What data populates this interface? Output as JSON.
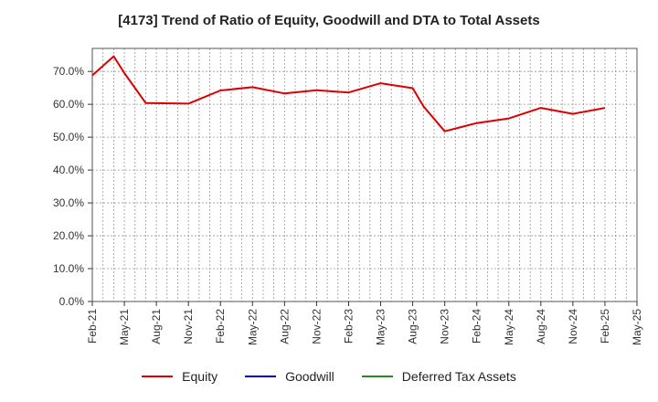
{
  "chart_data": {
    "type": "line",
    "title": "[4173]  Trend of Ratio of Equity, Goodwill and DTA to Total Assets",
    "xlabel": "",
    "ylabel": "",
    "x": [
      "2021-02",
      "2021-03",
      "2021-04",
      "2021-05",
      "2021-06",
      "2021-07",
      "2021-08",
      "2021-09",
      "2021-10",
      "2021-11",
      "2021-12",
      "2022-01",
      "2022-02",
      "2022-03",
      "2022-04",
      "2022-05",
      "2022-06",
      "2022-07",
      "2022-08",
      "2022-09",
      "2022-10",
      "2022-11",
      "2022-12",
      "2023-01",
      "2023-02",
      "2023-03",
      "2023-04",
      "2023-05",
      "2023-06",
      "2023-07",
      "2023-08",
      "2023-09",
      "2023-10",
      "2023-11",
      "2023-12",
      "2024-01",
      "2024-02",
      "2024-03",
      "2024-04",
      "2024-05",
      "2024-06",
      "2024-07",
      "2024-08",
      "2024-09",
      "2024-10",
      "2024-11",
      "2024-12",
      "2025-01",
      "2025-02",
      "2025-03",
      "2025-04",
      "2025-05"
    ],
    "x_ticks": [
      "Feb-21",
      "May-21",
      "Aug-21",
      "Nov-21",
      "Feb-22",
      "May-22",
      "Aug-22",
      "Nov-22",
      "Feb-23",
      "May-23",
      "Aug-23",
      "Nov-23",
      "Feb-24",
      "May-24",
      "Aug-24",
      "Nov-24",
      "Feb-25",
      "May-25"
    ],
    "y_ticks": [
      "0.0%",
      "10.0%",
      "20.0%",
      "30.0%",
      "40.0%",
      "50.0%",
      "60.0%",
      "70.0%"
    ],
    "ylim": [
      0,
      77
    ],
    "grid": true,
    "legend_position": "bottom",
    "series": [
      {
        "name": "Equity",
        "color": "#dd0000",
        "points": [
          [
            "2021-02",
            68.8
          ],
          [
            "2021-04",
            74.6
          ],
          [
            "2021-05",
            69.5
          ],
          [
            "2021-07",
            60.4
          ],
          [
            "2021-11",
            60.2
          ],
          [
            "2022-02",
            64.2
          ],
          [
            "2022-05",
            65.2
          ],
          [
            "2022-08",
            63.3
          ],
          [
            "2022-11",
            64.3
          ],
          [
            "2023-02",
            63.6
          ],
          [
            "2023-05",
            66.4
          ],
          [
            "2023-08",
            64.9
          ],
          [
            "2023-09",
            59.4
          ],
          [
            "2023-11",
            51.8
          ],
          [
            "2024-02",
            54.3
          ],
          [
            "2024-05",
            55.7
          ],
          [
            "2024-08",
            58.9
          ],
          [
            "2024-11",
            57.1
          ],
          [
            "2025-02",
            58.9
          ]
        ]
      },
      {
        "name": "Goodwill",
        "color": "#0000cc",
        "points": []
      },
      {
        "name": "Deferred Tax Assets",
        "color": "#228b22",
        "points": []
      }
    ]
  }
}
